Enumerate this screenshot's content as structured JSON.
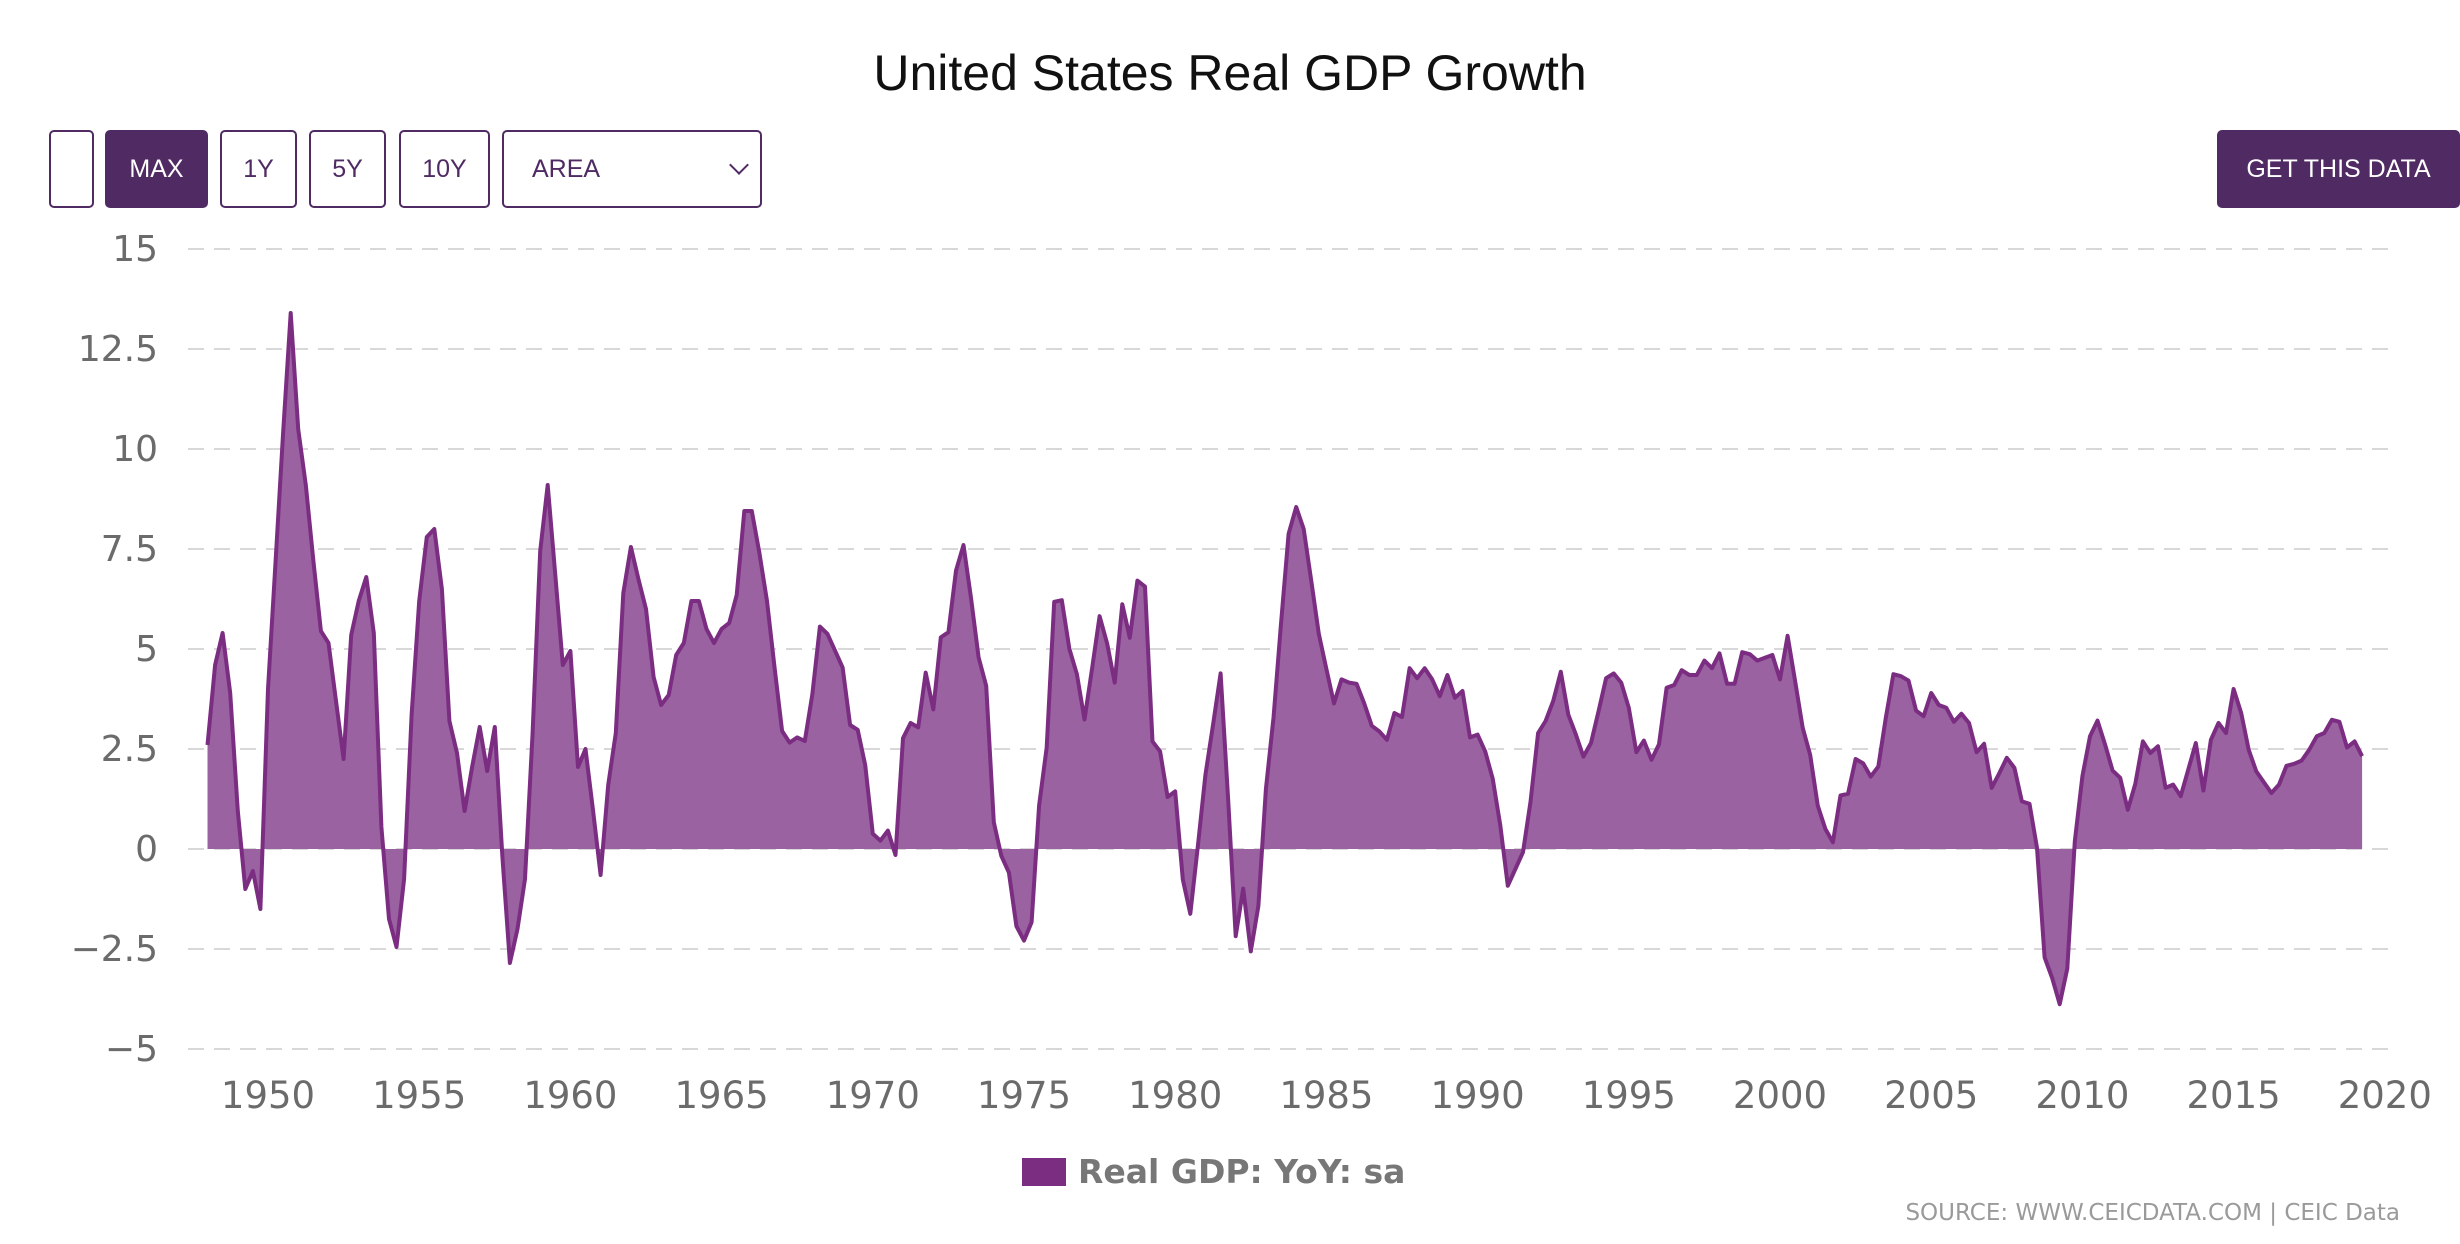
{
  "header": {
    "title": "United States Real GDP Growth"
  },
  "toolbar": {
    "blank_button": "",
    "ranges": [
      "MAX",
      "1Y",
      "5Y",
      "10Y"
    ],
    "active_range": "MAX",
    "chart_type": "AREA",
    "get_data": "GET THIS DATA"
  },
  "colors": {
    "brand": "#4f2a63",
    "series_line": "#7b2d82",
    "series_fill": "#9a62a1",
    "grid": "#d8d8d8",
    "axis_text": "#6b6b6b"
  },
  "legend": {
    "label": "Real GDP: YoY: sa"
  },
  "source": "SOURCE: WWW.CEICDATA.COM | CEIC Data",
  "chart_data": {
    "type": "area",
    "title": "United States Real GDP Growth",
    "xlabel": "",
    "ylabel": "",
    "frequency": "quarterly",
    "start": "1948-Q1",
    "end": "2019-Q2",
    "ylim": [
      -5,
      15
    ],
    "yticks": [
      15,
      12.5,
      10,
      7.5,
      5,
      2.5,
      0,
      -2.5,
      -5
    ],
    "ytick_labels": [
      "15",
      "12.5",
      "10",
      "7.5",
      "5",
      "2.5",
      "0",
      "−2.5",
      "−5"
    ],
    "xlim": [
      1948,
      2020
    ],
    "xticks": [
      1950,
      1955,
      1960,
      1965,
      1970,
      1975,
      1980,
      1985,
      1990,
      1995,
      2000,
      2005,
      2010,
      2015,
      2020
    ],
    "grid": true,
    "legend_position": "bottom-center",
    "series": [
      {
        "name": "Real GDP: YoY: sa",
        "values": [
          2.6,
          4.6,
          5.4,
          3.9,
          0.95,
          -1.0,
          -0.55,
          -1.5,
          4.0,
          7.2,
          10.4,
          13.4,
          10.5,
          9.1,
          7.2,
          5.45,
          5.15,
          3.7,
          2.25,
          5.35,
          6.2,
          6.8,
          5.4,
          0.55,
          -1.75,
          -2.45,
          -0.75,
          3.35,
          6.2,
          7.8,
          8.0,
          6.5,
          3.2,
          2.4,
          0.95,
          2.05,
          3.05,
          1.95,
          3.05,
          -0.2,
          -2.85,
          -2.0,
          -0.75,
          2.9,
          7.45,
          9.1,
          6.85,
          4.6,
          4.95,
          2.05,
          2.5,
          0.95,
          -0.65,
          1.6,
          2.9,
          6.4,
          7.55,
          6.75,
          6.0,
          4.3,
          3.6,
          3.85,
          4.85,
          5.15,
          6.2,
          6.2,
          5.5,
          5.15,
          5.5,
          5.65,
          6.35,
          8.45,
          8.45,
          7.4,
          6.2,
          4.55,
          2.95,
          2.66,
          2.79,
          2.7,
          3.86,
          5.56,
          5.38,
          4.96,
          4.54,
          3.1,
          2.98,
          2.1,
          0.38,
          0.21,
          0.46,
          -0.15,
          2.77,
          3.15,
          3.04,
          4.41,
          3.49,
          5.29,
          5.42,
          6.96,
          7.6,
          6.26,
          4.79,
          4.08,
          0.67,
          -0.17,
          -0.59,
          -1.93,
          -2.29,
          -1.83,
          1.09,
          2.54,
          6.18,
          6.22,
          5.0,
          4.37,
          3.24,
          4.5,
          5.82,
          5.13,
          4.16,
          6.12,
          5.28,
          6.71,
          6.56,
          2.69,
          2.44,
          1.3,
          1.44,
          -0.76,
          -1.62,
          0.08,
          1.85,
          3.1,
          4.39,
          1.26,
          -2.18,
          -0.99,
          -2.56,
          -1.42,
          1.5,
          3.28,
          5.63,
          7.88,
          8.55,
          8.0,
          6.7,
          5.38,
          4.5,
          3.64,
          4.24,
          4.16,
          4.13,
          3.64,
          3.08,
          2.94,
          2.73,
          3.4,
          3.3,
          4.52,
          4.27,
          4.52,
          4.24,
          3.82,
          4.35,
          3.78,
          3.95,
          2.79,
          2.86,
          2.44,
          1.76,
          0.59,
          -0.92,
          -0.5,
          -0.08,
          1.18,
          2.9,
          3.2,
          3.7,
          4.43,
          3.36,
          2.86,
          2.31,
          2.65,
          3.45,
          4.27,
          4.39,
          4.16,
          3.53,
          2.42,
          2.71,
          2.23,
          2.62,
          4.03,
          4.1,
          4.47,
          4.35,
          4.35,
          4.71,
          4.52,
          4.89,
          4.13,
          4.13,
          4.92,
          4.87,
          4.71,
          4.78,
          4.85,
          4.24,
          5.33,
          4.2,
          3.03,
          2.35,
          1.08,
          0.5,
          0.17,
          1.34,
          1.38,
          2.25,
          2.14,
          1.81,
          2.06,
          3.28,
          4.37,
          4.32,
          4.21,
          3.46,
          3.32,
          3.9,
          3.6,
          3.53,
          3.18,
          3.38,
          3.15,
          2.42,
          2.63,
          1.53,
          1.89,
          2.28,
          2.03,
          1.19,
          1.13,
          0.03,
          -2.71,
          -3.23,
          -3.88,
          -2.99,
          0.19,
          1.82,
          2.82,
          3.21,
          2.61,
          1.96,
          1.78,
          0.98,
          1.63,
          2.69,
          2.4,
          2.57,
          1.53,
          1.61,
          1.32,
          1.98,
          2.65,
          1.46,
          2.73,
          3.15,
          2.9,
          4.0,
          3.4,
          2.48,
          1.94,
          1.67,
          1.4,
          1.61,
          2.08,
          2.13,
          2.21,
          2.48,
          2.82,
          2.9,
          3.23,
          3.18,
          2.54,
          2.69,
          2.32
        ]
      }
    ]
  }
}
